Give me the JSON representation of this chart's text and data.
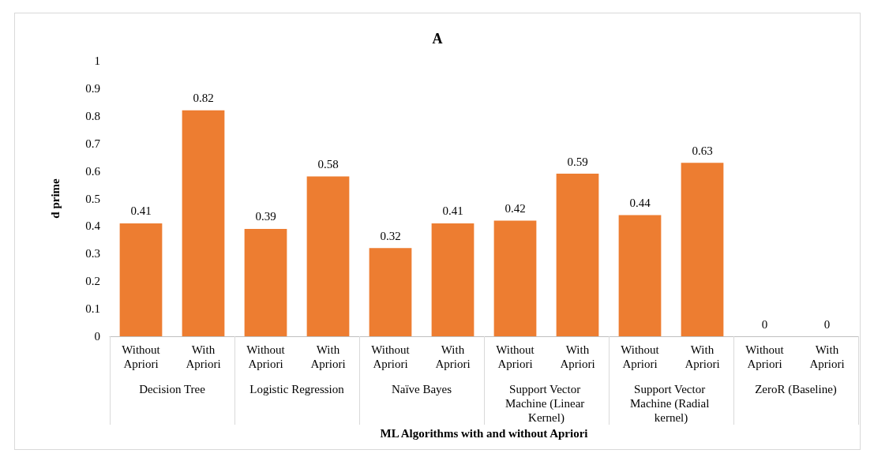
{
  "chart_data": {
    "type": "bar",
    "title": "A",
    "xlabel": "ML Algorithms with and without Apriori",
    "ylabel": "d prime",
    "categories": [
      "Without Apriori",
      "With Apriori",
      "Without Apriori",
      "With Apriori",
      "Without Apriori",
      "With Apriori",
      "Without Apriori",
      "With Apriori",
      "Without Apriori",
      "With Apriori",
      "Without Apriori",
      "With Apriori"
    ],
    "values": [
      0.41,
      0.82,
      0.39,
      0.58,
      0.32,
      0.41,
      0.42,
      0.59,
      0.44,
      0.63,
      0,
      0
    ],
    "color": "#ed7d31",
    "ylim": [
      0,
      1
    ],
    "yticks": [
      0,
      0.1,
      0.2,
      0.3,
      0.4,
      0.5,
      0.6,
      0.7,
      0.8,
      0.9,
      1
    ],
    "grid": false,
    "data_labels": true,
    "annotations": [
      "Decision Tree",
      "Logistic Regression",
      "Naïve Bayes",
      "Support Vector Machine (Linear Kernel)",
      "Support Vector Machine (Radial kernel)",
      "ZeroR (Baseline)"
    ]
  }
}
